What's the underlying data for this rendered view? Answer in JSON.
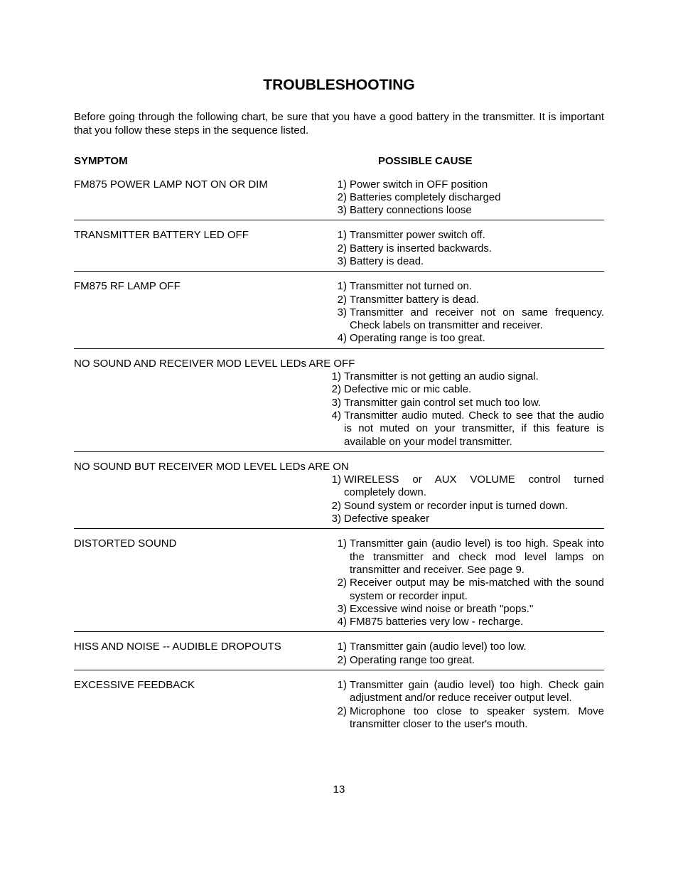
{
  "title": "TROUBLESHOOTING",
  "intro": "Before going through the following chart, be sure that you have a good battery in the transmitter.  It is important that you follow these steps in the sequence listed.",
  "header_symptom": "SYMPTOM",
  "header_cause": "POSSIBLE CAUSE",
  "page_number": "13",
  "rows": [
    {
      "symptom": "FM875 POWER LAMP NOT ON OR DIM",
      "wrap": false,
      "causes": [
        {
          "n": "1)",
          "t": "Power switch in OFF position",
          "j": false
        },
        {
          "n": "2)",
          "t": "Batteries completely discharged",
          "j": false
        },
        {
          "n": "3)",
          "t": "Battery connections loose",
          "j": false
        }
      ]
    },
    {
      "symptom": "TRANSMITTER BATTERY LED OFF",
      "wrap": false,
      "causes": [
        {
          "n": "1)",
          "t": "Transmitter power switch off.",
          "j": false
        },
        {
          "n": "2)",
          "t": "Battery is inserted backwards.",
          "j": false
        },
        {
          "n": "3)",
          "t": "Battery is dead.",
          "j": false
        }
      ]
    },
    {
      "symptom": "FM875 RF LAMP OFF",
      "wrap": false,
      "causes": [
        {
          "n": "1)",
          "t": "Transmitter not turned on.",
          "j": false
        },
        {
          "n": "2)",
          "t": "Transmitter battery is dead.",
          "j": false
        },
        {
          "n": "3)",
          "t": "Transmitter and receiver not on same frequency.  Check labels on transmitter and receiver.",
          "j": true
        },
        {
          "n": "4)",
          "t": "Operating range is too great.",
          "j": false
        }
      ]
    },
    {
      "symptom": "NO SOUND AND RECEIVER MOD LEVEL LEDs ARE OFF",
      "wrap": true,
      "causes": [
        {
          "n": "1)",
          "t": "Transmitter is not getting an audio signal.",
          "j": false
        },
        {
          "n": "2)",
          "t": "Defective mic or mic cable.",
          "j": false
        },
        {
          "n": "3)",
          "t": "Transmitter gain control set much too low.",
          "j": false
        },
        {
          "n": "4)",
          "t": "Transmitter audio muted.  Check to see that the audio is not muted on your transmitter, if this feature is available on your model transmitter.",
          "j": true
        }
      ]
    },
    {
      "symptom": "NO SOUND BUT RECEIVER MOD LEVEL LEDs ARE ON",
      "wrap": true,
      "causes": [
        {
          "n": "1)",
          "t": "WIRELESS or AUX VOLUME control turned completely down.",
          "j": true
        },
        {
          "n": "2)",
          "t": "Sound system or recorder input is turned down.",
          "j": false
        },
        {
          "n": "3)",
          "t": "Defective speaker",
          "j": false
        }
      ]
    },
    {
      "symptom": "DISTORTED SOUND",
      "wrap": false,
      "causes": [
        {
          "n": "1)",
          "t": "Transmitter gain (audio level) is too high.  Speak into the transmitter and check mod level lamps on transmitter and receiver.  See page 9.",
          "j": true
        },
        {
          "n": "2)",
          "t": "Receiver output may be mis-matched with the sound system or recorder input.",
          "j": true
        },
        {
          "n": "3)",
          "t": "Excessive wind noise or breath \"pops.\"",
          "j": false
        },
        {
          "n": "4)",
          "t": "FM875 batteries very low - recharge.",
          "j": false
        }
      ]
    },
    {
      "symptom": "HISS AND NOISE -- AUDIBLE DROPOUTS",
      "wrap": false,
      "causes": [
        {
          "n": "1)",
          "t": "Transmitter gain (audio level) too low.",
          "j": false
        },
        {
          "n": "2)",
          "t": "Operating range too great.",
          "j": false
        }
      ]
    },
    {
      "symptom": "EXCESSIVE FEEDBACK",
      "wrap": false,
      "no_border": true,
      "causes": [
        {
          "n": "1)",
          "t": "Transmitter gain (audio level) too high.  Check gain adjustment and/or reduce receiver output level.",
          "j": true
        },
        {
          "n": "2)",
          "t": "Microphone too close to speaker system.  Move transmitter closer to the user's mouth.",
          "j": true
        }
      ]
    }
  ]
}
